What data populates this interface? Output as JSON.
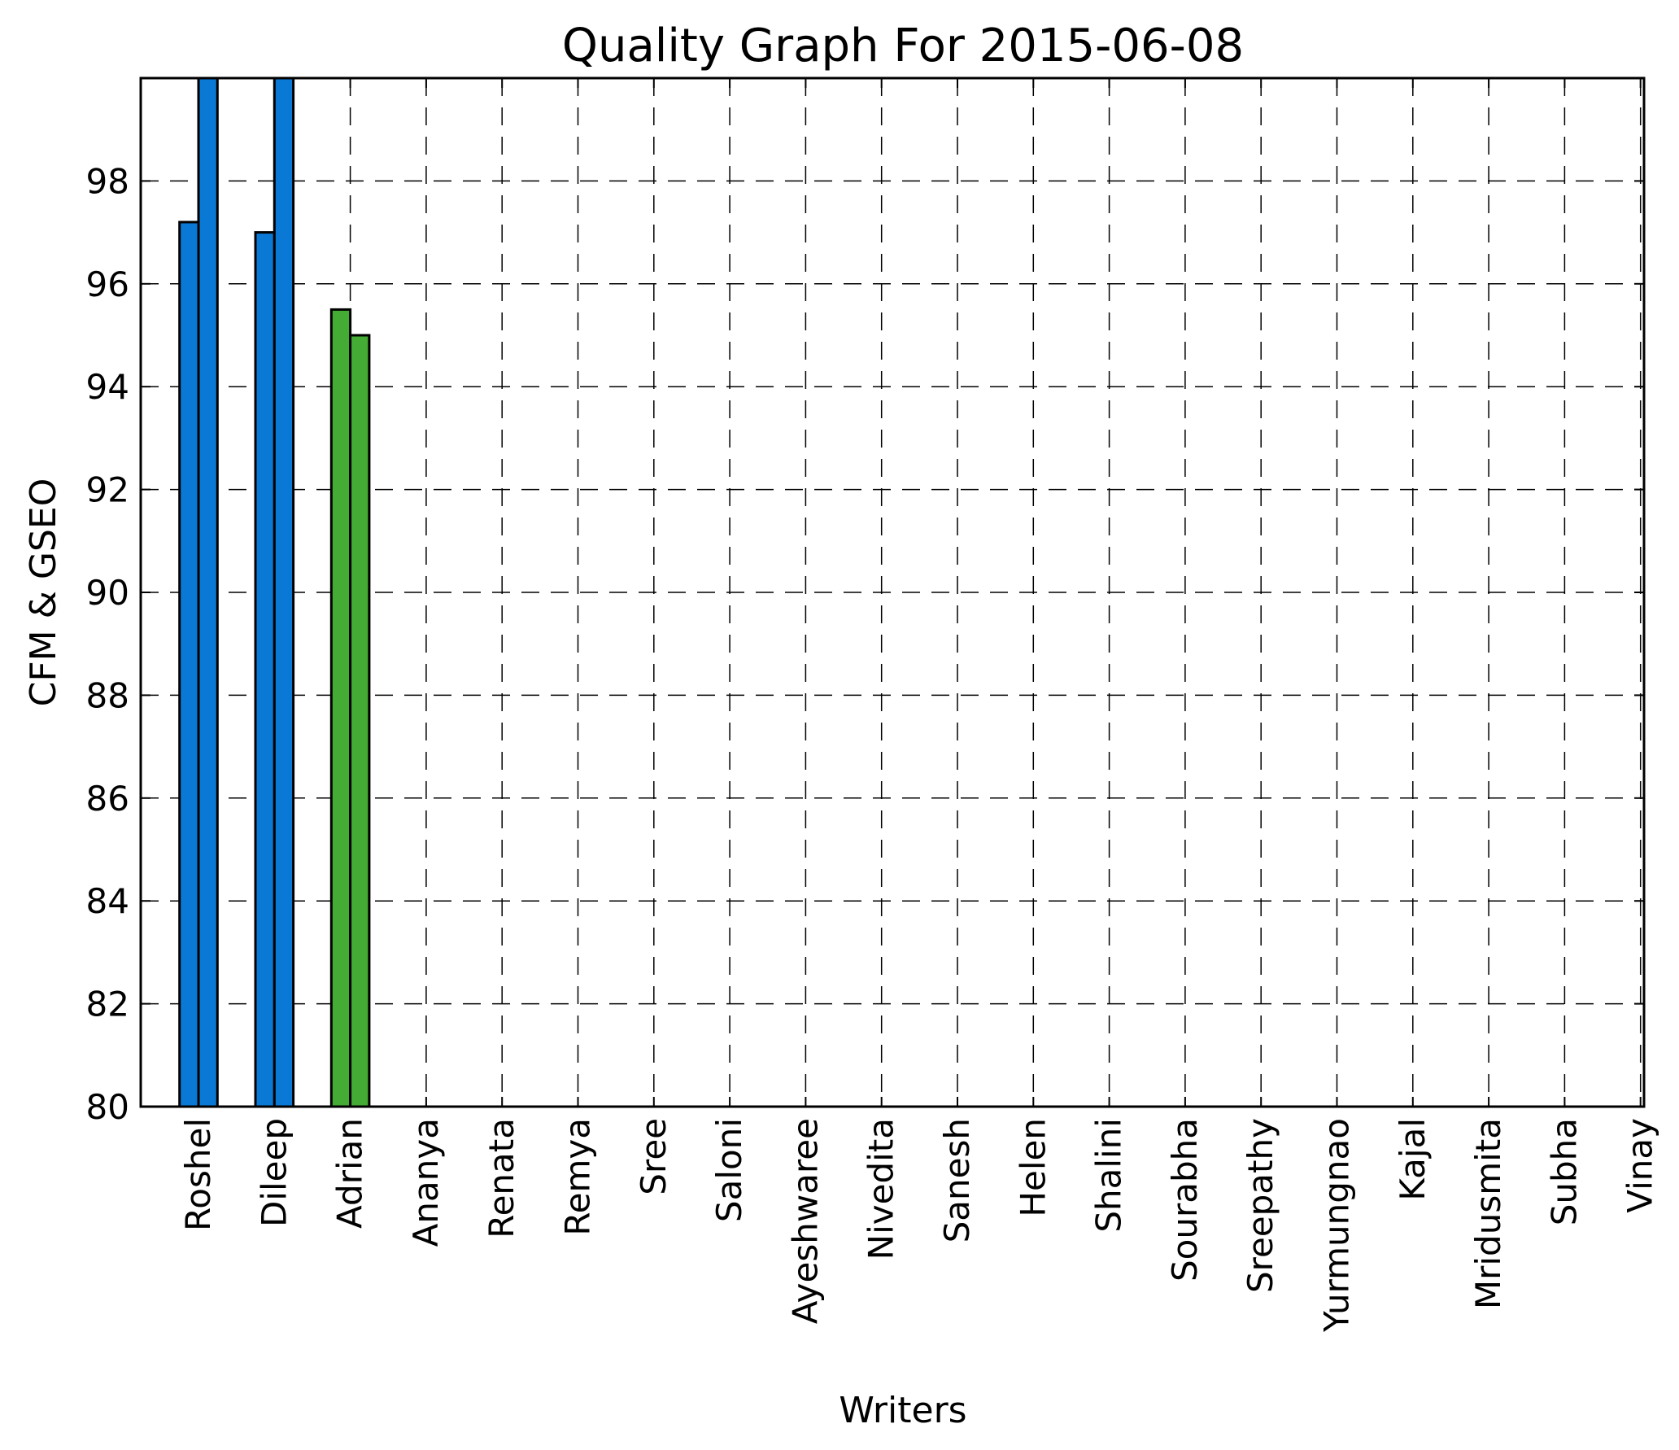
{
  "chart_data": {
    "type": "bar",
    "title": "Quality Graph For 2015-06-08",
    "xlabel": "Writers",
    "ylabel": "CFM & GSEO",
    "ylim": [
      80,
      100
    ],
    "yticks": [
      80,
      82,
      84,
      86,
      88,
      90,
      92,
      94,
      96,
      98
    ],
    "grid": true,
    "categories": [
      "Roshel",
      "Dileep",
      "Adrian",
      "Ananya",
      "Renata",
      "Remya",
      "Sree",
      "Saloni",
      "Ayeshwaree",
      "Nivedita",
      "Sanesh",
      "Helen",
      "Shalini",
      "Sourabha",
      "Sreepathy",
      "Yurmungnao",
      "Kajal",
      "Mridusmita",
      "Subha",
      "Vinay"
    ],
    "series": [
      {
        "values": [
          97.2,
          97.0,
          95.5,
          null,
          null,
          null,
          null,
          null,
          null,
          null,
          null,
          null,
          null,
          null,
          null,
          null,
          null,
          null,
          null,
          null
        ]
      },
      {
        "values": [
          100,
          100,
          95.0,
          null,
          null,
          null,
          null,
          null,
          null,
          null,
          null,
          null,
          null,
          null,
          null,
          null,
          null,
          null,
          null,
          null
        ]
      }
    ],
    "bar_colors": [
      "#0a79d6",
      "#0a79d6",
      "#44ac34"
    ],
    "colors": {
      "edge": "#000000",
      "grid": "#000000",
      "background": "#ffffff"
    }
  }
}
